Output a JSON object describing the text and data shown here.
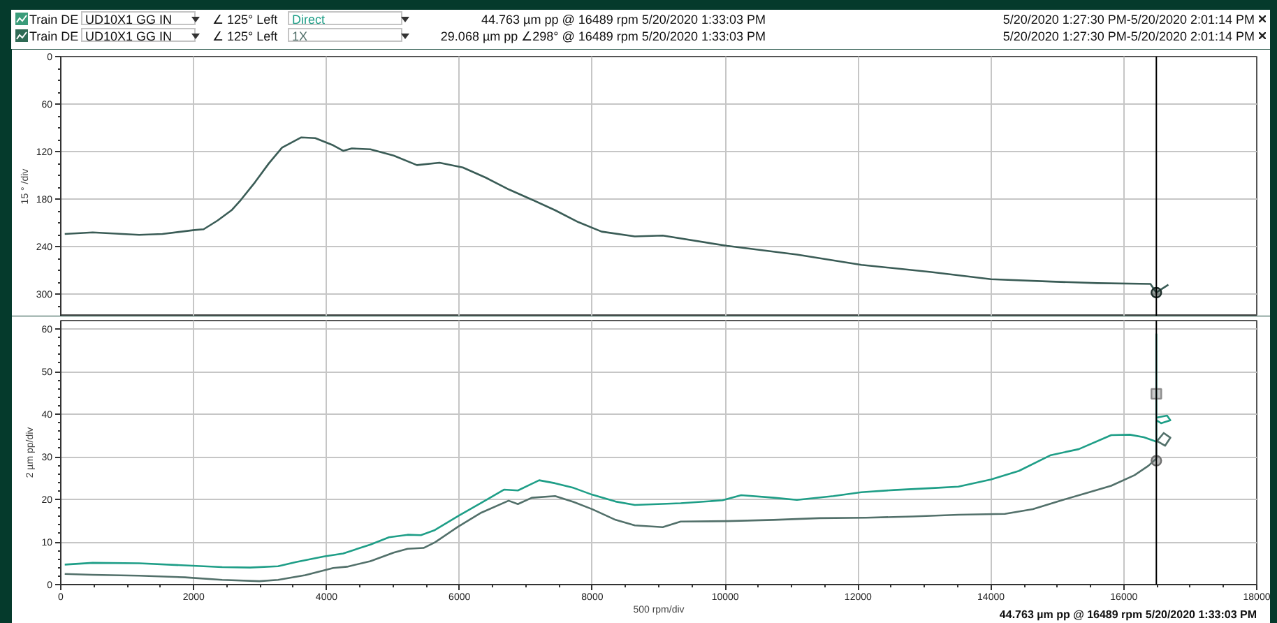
{
  "chart_data": [
    {
      "type": "line",
      "ylabel": "15 ° /div",
      "xlim": [
        0,
        18000
      ],
      "xticks": [
        0,
        2000,
        4000,
        6000,
        8000,
        10000,
        12000,
        14000,
        16000,
        18000
      ],
      "ylim": [
        328,
        0
      ],
      "yticks": [
        0,
        {
          "value": 15,
          "label": null
        },
        {
          "value": 30,
          "label": null
        },
        {
          "value": 45,
          "label": null
        },
        60,
        {
          "value": 75,
          "label": null
        },
        {
          "value": 90,
          "label": null
        },
        {
          "value": 105,
          "label": null
        },
        120,
        {
          "value": 135,
          "label": null
        },
        {
          "value": 150,
          "label": null
        },
        {
          "value": 165,
          "label": null
        },
        180,
        {
          "value": 195,
          "label": null
        },
        {
          "value": 210,
          "label": null
        },
        {
          "value": 225,
          "label": null
        },
        240,
        {
          "value": 255,
          "label": null
        },
        {
          "value": 270,
          "label": null
        },
        {
          "value": 285,
          "label": null
        },
        300,
        {
          "value": 315,
          "label": null
        }
      ],
      "tick_labels": "y",
      "grid": true,
      "series": [
        {
          "color": "#3a5c56",
          "x": [
            60,
            480,
            1180,
            1530,
            2010,
            2150,
            2360,
            2570,
            2710,
            2920,
            3130,
            3330,
            3620,
            3830,
            4100,
            4250,
            4380,
            4660,
            5010,
            5360,
            5700,
            6050,
            6400,
            6750,
            7100,
            7440,
            7790,
            8140,
            8640,
            9060,
            10030,
            11080,
            12050,
            13100,
            14000,
            14900,
            15600,
            16400,
            16489,
            16560,
            16670
          ],
          "values": [
            224,
            222,
            225,
            224,
            219,
            218,
            207,
            194,
            181,
            159,
            135,
            115,
            102,
            103,
            112,
            119,
            116,
            117,
            125,
            137,
            134,
            140,
            153,
            168,
            181,
            194,
            209,
            221,
            227,
            226,
            239,
            250,
            263,
            272,
            281,
            284,
            286,
            287,
            298,
            294,
            288
          ]
        },
        {
          "type": "scatter",
          "marker": "circle",
          "color": "#1e2e2b",
          "x": [
            16489
          ],
          "values": [
            298
          ]
        }
      ],
      "ref_lines": [
        {
          "axis": "x",
          "value": 16489,
          "color": "#000000"
        }
      ]
    },
    {
      "type": "line",
      "ylabel": "2 µm pp/div",
      "xlabel": "500 rpm/div",
      "xlim": [
        0,
        18000
      ],
      "xticks": [
        0,
        {
          "value": 500,
          "label": null
        },
        {
          "value": 1000,
          "label": null
        },
        {
          "value": 1500,
          "label": null
        },
        2000,
        {
          "value": 2500,
          "label": null
        },
        {
          "value": 3000,
          "label": null
        },
        {
          "value": 3500,
          "label": null
        },
        4000,
        {
          "value": 4500,
          "label": null
        },
        {
          "value": 5000,
          "label": null
        },
        {
          "value": 5500,
          "label": null
        },
        6000,
        {
          "value": 6500,
          "label": null
        },
        {
          "value": 7000,
          "label": null
        },
        {
          "value": 7500,
          "label": null
        },
        8000,
        {
          "value": 8500,
          "label": null
        },
        {
          "value": 9000,
          "label": null
        },
        {
          "value": 9500,
          "label": null
        },
        10000,
        {
          "value": 10500,
          "label": null
        },
        {
          "value": 11000,
          "label": null
        },
        {
          "value": 11500,
          "label": null
        },
        12000,
        {
          "value": 12500,
          "label": null
        },
        {
          "value": 13000,
          "label": null
        },
        {
          "value": 13500,
          "label": null
        },
        14000,
        {
          "value": 14500,
          "label": null
        },
        {
          "value": 15000,
          "label": null
        },
        {
          "value": 15500,
          "label": null
        },
        16000,
        {
          "value": 16500,
          "label": null
        },
        {
          "value": 17000,
          "label": null
        },
        {
          "value": 17500,
          "label": null
        },
        18000
      ],
      "ylim": [
        0,
        62
      ],
      "yticks": [
        0,
        {
          "value": 2,
          "label": null
        },
        {
          "value": 4,
          "label": null
        },
        {
          "value": 6,
          "label": null
        },
        {
          "value": 8,
          "label": null
        },
        10,
        {
          "value": 12,
          "label": null
        },
        {
          "value": 14,
          "label": null
        },
        {
          "value": 16,
          "label": null
        },
        {
          "value": 18,
          "label": null
        },
        20,
        {
          "value": 22,
          "label": null
        },
        {
          "value": 24,
          "label": null
        },
        {
          "value": 26,
          "label": null
        },
        {
          "value": 28,
          "label": null
        },
        30,
        {
          "value": 32,
          "label": null
        },
        {
          "value": 34,
          "label": null
        },
        {
          "value": 36,
          "label": null
        },
        {
          "value": 38,
          "label": null
        },
        40,
        {
          "value": 42,
          "label": null
        },
        {
          "value": 44,
          "label": null
        },
        {
          "value": 46,
          "label": null
        },
        {
          "value": 48,
          "label": null
        },
        50,
        {
          "value": 52,
          "label": null
        },
        {
          "value": 54,
          "label": null
        },
        {
          "value": 56,
          "label": null
        },
        {
          "value": 58,
          "label": null
        },
        60
      ],
      "grid": true,
      "legend": "top",
      "series": [
        {
          "name": "Direct",
          "color": "#1e9e87",
          "x": [
            60,
            480,
            1180,
            1870,
            2430,
            2850,
            3270,
            3540,
            3960,
            4250,
            4660,
            4940,
            5220,
            5420,
            5630,
            5980,
            6330,
            6670,
            6880,
            7200,
            7440,
            7720,
            8000,
            8350,
            8640,
            9330,
            9960,
            10240,
            10730,
            11080,
            11630,
            12050,
            12540,
            13160,
            13510,
            14000,
            14420,
            14900,
            15320,
            15810,
            16090,
            16300,
            16450,
            16489,
            16489,
            16489,
            16650,
            16700,
            16560,
            16489
          ],
          "values": [
            4.7,
            5.1,
            5.0,
            4.5,
            4.1,
            4.0,
            4.3,
            5.3,
            6.6,
            7.3,
            9.4,
            11.1,
            11.7,
            11.6,
            12.8,
            16.1,
            19.2,
            22.3,
            22.1,
            24.5,
            23.8,
            22.7,
            21.1,
            19.5,
            18.7,
            19.1,
            19.8,
            21.0,
            20.4,
            19.9,
            20.8,
            21.7,
            22.2,
            22.7,
            23.0,
            24.7,
            26.7,
            30.4,
            31.8,
            35.1,
            35.2,
            34.6,
            33.8,
            33.5,
            58.8,
            39.2,
            39.7,
            38.6,
            37.9,
            38.6
          ]
        },
        {
          "name": "1X",
          "color": "#52706a",
          "x": [
            60,
            480,
            1180,
            1870,
            2430,
            2990,
            3270,
            3680,
            4100,
            4310,
            4660,
            5010,
            5220,
            5460,
            5630,
            5980,
            6330,
            6740,
            6880,
            7090,
            7440,
            7720,
            8000,
            8350,
            8640,
            9060,
            9330,
            10030,
            10730,
            11420,
            12120,
            12820,
            13510,
            14210,
            14630,
            15040,
            15390,
            15810,
            16160,
            16370,
            16489,
            16489,
            16600,
            16700,
            16620,
            16489
          ],
          "values": [
            2.5,
            2.3,
            2.1,
            1.7,
            1.1,
            0.8,
            1.1,
            2.2,
            3.9,
            4.2,
            5.5,
            7.5,
            8.4,
            8.6,
            9.9,
            13.6,
            16.9,
            19.7,
            18.9,
            20.4,
            20.8,
            19.4,
            17.7,
            15.2,
            13.9,
            13.5,
            14.8,
            14.9,
            15.2,
            15.6,
            15.7,
            16.0,
            16.4,
            16.6,
            17.7,
            19.7,
            21.3,
            23.2,
            25.7,
            27.9,
            29.6,
            33.5,
            35.6,
            34.5,
            32.6,
            33.8
          ]
        },
        {
          "type": "scatter",
          "marker": "square",
          "color": "#8c8c8c",
          "x": [
            16489
          ],
          "values": [
            44.8
          ]
        },
        {
          "type": "scatter",
          "marker": "circle",
          "color": "#6f6f6f",
          "x": [
            16489
          ],
          "values": [
            29.1
          ]
        }
      ],
      "ref_lines": [
        {
          "axis": "x",
          "value": 16489,
          "color": "#000000"
        }
      ],
      "annotations": [
        "Train DE",
        "UD10X1 GG IN",
        "∠ 125° Left",
        "44.763 µm pp @ 16489 rpm 5/20/2020 1:33:03 PM",
        "5/20/2020 1:27:30 PM-5/20/2020 2:01:14 PM",
        "Train DE",
        "UD10X1 GG IN",
        "∠ 125° Left",
        "29.068 µm pp ∠298° @ 16489 rpm 5/20/2020 1:33:03 PM",
        "5/20/2020 1:27:30 PM-5/20/2020 2:01:14 PM",
        "44.763 µm pp @ 16489 rpm 5/20/2020 1:33:03 PM"
      ]
    }
  ]
}
